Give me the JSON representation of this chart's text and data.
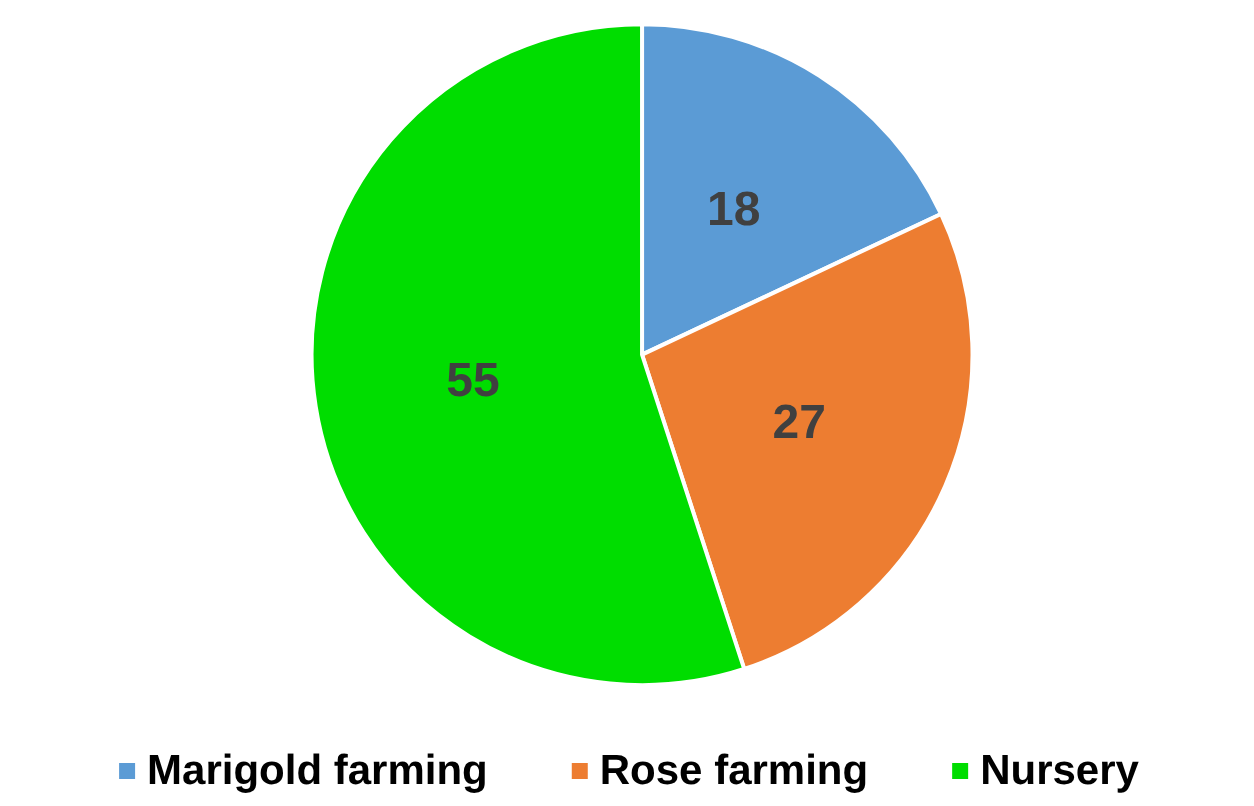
{
  "chart_data": {
    "type": "pie",
    "categories": [
      "Marigold farming",
      "Rose farming",
      "Nursery"
    ],
    "values": [
      18,
      27,
      55
    ],
    "colors": [
      "#5b9bd5",
      "#ed7d31",
      "#00dd00"
    ],
    "data_labels": true,
    "legend": "bottom"
  }
}
